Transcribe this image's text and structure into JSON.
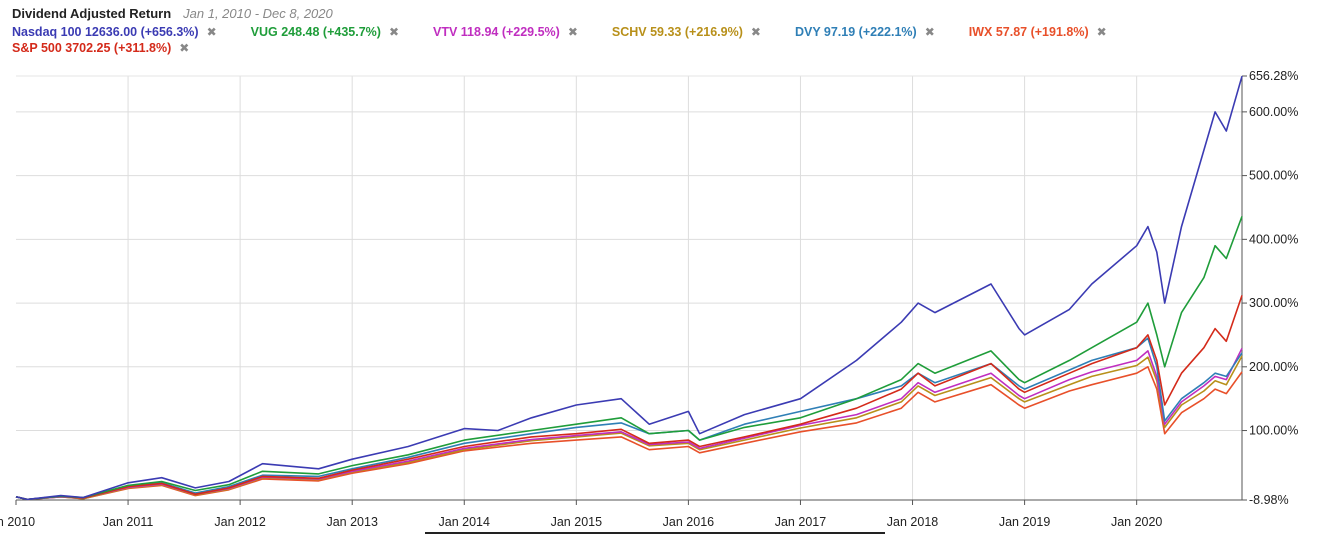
{
  "header": {
    "title": "Dividend Adjusted Return",
    "date_range": "Jan 1, 2010 - Dec 8, 2020"
  },
  "legend": [
    {
      "text": "Nasdaq 100 12636.00 (+656.3%)",
      "color": "#3b3bb3"
    },
    {
      "text": "VUG 248.48 (+435.7%)",
      "color": "#1f9d3a"
    },
    {
      "text": "VTV 118.94 (+229.5%)",
      "color": "#c02ec0"
    },
    {
      "text": "SCHV 59.33 (+216.9%)",
      "color": "#b8901a"
    },
    {
      "text": "DVY 97.19 (+222.1%)",
      "color": "#2f7fb6"
    },
    {
      "text": "IWX 57.87 (+191.8%)",
      "color": "#e8502a"
    },
    {
      "text": "S&P 500 3702.25 (+311.8%)",
      "color": "#d42a1a"
    }
  ],
  "remove_icon": "✖",
  "chart_data": {
    "type": "line",
    "title": "Dividend Adjusted Return",
    "subtitle": "Jan 1, 2010 - Dec 8, 2020",
    "xlabel": "",
    "ylabel": "",
    "x_ticks": [
      "n 2010",
      "Jan 2011",
      "Jan 2012",
      "Jan 2013",
      "Jan 2014",
      "Jan 2015",
      "Jan 2016",
      "Jan 2017",
      "Jan 2018",
      "Jan 2019",
      "Jan 2020"
    ],
    "y_ticks": [
      "-8.98%",
      "100.00%",
      "200.00%",
      "300.00%",
      "400.00%",
      "500.00%",
      "600.00%",
      "656.28%"
    ],
    "ylim": [
      -8.98,
      656.28
    ],
    "xlim": [
      2010.0,
      2020.94
    ],
    "grid": true,
    "legend_position": "top",
    "series": [
      {
        "name": "Nasdaq 100",
        "color": "#3b3bb3",
        "x": [
          2010.0,
          2010.1,
          2010.4,
          2010.6,
          2011.0,
          2011.3,
          2011.6,
          2011.9,
          2012.2,
          2012.7,
          2013.0,
          2013.5,
          2014.0,
          2014.3,
          2014.6,
          2015.0,
          2015.4,
          2015.65,
          2016.0,
          2016.1,
          2016.5,
          2017.0,
          2017.5,
          2017.9,
          2018.05,
          2018.2,
          2018.7,
          2018.95,
          2019.0,
          2019.4,
          2019.6,
          2020.0,
          2020.1,
          2020.18,
          2020.25,
          2020.4,
          2020.6,
          2020.7,
          2020.8,
          2020.94
        ],
        "y": [
          -4,
          -8,
          -2,
          -5,
          18,
          26,
          10,
          20,
          48,
          40,
          55,
          75,
          103,
          100,
          120,
          140,
          150,
          110,
          130,
          95,
          125,
          150,
          210,
          270,
          300,
          285,
          330,
          260,
          250,
          290,
          330,
          390,
          420,
          380,
          300,
          420,
          540,
          600,
          570,
          656
        ]
      },
      {
        "name": "VUG",
        "color": "#1f9d3a",
        "x": [
          2010.0,
          2010.1,
          2010.4,
          2010.6,
          2011.0,
          2011.3,
          2011.6,
          2011.9,
          2012.2,
          2012.7,
          2013.0,
          2013.5,
          2014.0,
          2014.6,
          2015.0,
          2015.4,
          2015.65,
          2016.0,
          2016.1,
          2016.5,
          2017.0,
          2017.5,
          2017.9,
          2018.05,
          2018.2,
          2018.7,
          2018.95,
          2019.0,
          2019.4,
          2019.6,
          2020.0,
          2020.1,
          2020.18,
          2020.25,
          2020.4,
          2020.6,
          2020.7,
          2020.8,
          2020.94
        ],
        "y": [
          -4,
          -8,
          -3,
          -5,
          14,
          20,
          6,
          15,
          36,
          32,
          45,
          62,
          85,
          100,
          110,
          120,
          95,
          100,
          85,
          105,
          120,
          150,
          180,
          205,
          190,
          225,
          180,
          175,
          210,
          230,
          270,
          300,
          250,
          200,
          285,
          340,
          390,
          370,
          436
        ]
      },
      {
        "name": "S&P 500",
        "color": "#d42a1a",
        "x": [
          2010.0,
          2010.1,
          2010.4,
          2010.6,
          2011.0,
          2011.3,
          2011.6,
          2011.9,
          2012.2,
          2012.7,
          2013.0,
          2013.5,
          2014.0,
          2014.6,
          2015.0,
          2015.4,
          2015.65,
          2016.0,
          2016.1,
          2016.5,
          2017.0,
          2017.5,
          2017.9,
          2018.05,
          2018.2,
          2018.7,
          2018.95,
          2019.0,
          2019.4,
          2019.6,
          2020.0,
          2020.1,
          2020.18,
          2020.25,
          2020.4,
          2020.6,
          2020.7,
          2020.8,
          2020.94
        ],
        "y": [
          -4,
          -8,
          -3,
          -6,
          12,
          17,
          0,
          10,
          28,
          25,
          38,
          55,
          75,
          90,
          95,
          102,
          80,
          85,
          75,
          90,
          110,
          135,
          165,
          190,
          170,
          205,
          165,
          160,
          190,
          205,
          230,
          250,
          210,
          140,
          190,
          230,
          260,
          240,
          312
        ]
      },
      {
        "name": "DVY",
        "color": "#2f7fb6",
        "x": [
          2010.0,
          2010.1,
          2010.4,
          2010.6,
          2011.0,
          2011.3,
          2011.6,
          2011.9,
          2012.2,
          2012.7,
          2013.0,
          2013.5,
          2014.0,
          2014.6,
          2015.0,
          2015.4,
          2015.65,
          2016.0,
          2016.1,
          2016.5,
          2017.0,
          2017.5,
          2017.9,
          2018.05,
          2018.2,
          2018.7,
          2018.95,
          2019.0,
          2019.4,
          2019.6,
          2020.0,
          2020.1,
          2020.18,
          2020.25,
          2020.4,
          2020.6,
          2020.7,
          2020.8,
          2020.94
        ],
        "y": [
          -4,
          -8,
          -3,
          -6,
          13,
          18,
          2,
          12,
          30,
          28,
          40,
          58,
          80,
          95,
          105,
          112,
          95,
          100,
          85,
          110,
          130,
          150,
          170,
          190,
          175,
          205,
          170,
          165,
          195,
          210,
          230,
          245,
          200,
          115,
          150,
          175,
          190,
          185,
          222
        ]
      },
      {
        "name": "VTV",
        "color": "#c02ec0",
        "x": [
          2010.0,
          2010.1,
          2010.4,
          2010.6,
          2011.0,
          2011.3,
          2011.6,
          2011.9,
          2012.2,
          2012.7,
          2013.0,
          2013.5,
          2014.0,
          2014.6,
          2015.0,
          2015.4,
          2015.65,
          2016.0,
          2016.1,
          2016.5,
          2017.0,
          2017.5,
          2017.9,
          2018.05,
          2018.2,
          2018.7,
          2018.95,
          2019.0,
          2019.4,
          2019.6,
          2020.0,
          2020.1,
          2020.18,
          2020.25,
          2020.4,
          2020.6,
          2020.7,
          2020.8,
          2020.94
        ],
        "y": [
          -4,
          -8,
          -4,
          -6,
          11,
          16,
          0,
          9,
          27,
          24,
          36,
          52,
          72,
          86,
          92,
          98,
          78,
          82,
          72,
          88,
          108,
          125,
          150,
          175,
          160,
          190,
          155,
          150,
          180,
          192,
          210,
          225,
          185,
          110,
          145,
          170,
          185,
          180,
          229
        ]
      },
      {
        "name": "SCHV",
        "color": "#b8901a",
        "x": [
          2010.0,
          2010.1,
          2010.4,
          2010.6,
          2011.0,
          2011.3,
          2011.6,
          2011.9,
          2012.2,
          2012.7,
          2013.0,
          2013.5,
          2014.0,
          2014.6,
          2015.0,
          2015.4,
          2015.65,
          2016.0,
          2016.1,
          2016.5,
          2017.0,
          2017.5,
          2017.9,
          2018.05,
          2018.2,
          2018.7,
          2018.95,
          2019.0,
          2019.4,
          2019.6,
          2020.0,
          2020.1,
          2020.18,
          2020.25,
          2020.4,
          2020.6,
          2020.7,
          2020.8,
          2020.94
        ],
        "y": [
          -4,
          -8,
          -4,
          -7,
          10,
          15,
          -1,
          8,
          26,
          23,
          35,
          50,
          70,
          84,
          90,
          96,
          76,
          80,
          70,
          85,
          104,
          120,
          145,
          170,
          155,
          183,
          150,
          145,
          172,
          185,
          202,
          215,
          178,
          105,
          140,
          162,
          178,
          172,
          217
        ]
      },
      {
        "name": "IWX",
        "color": "#e8502a",
        "x": [
          2010.0,
          2010.1,
          2010.4,
          2010.6,
          2011.0,
          2011.3,
          2011.6,
          2011.9,
          2012.2,
          2012.7,
          2013.0,
          2013.5,
          2014.0,
          2014.6,
          2015.0,
          2015.4,
          2015.65,
          2016.0,
          2016.1,
          2016.5,
          2017.0,
          2017.5,
          2017.9,
          2018.05,
          2018.2,
          2018.7,
          2018.95,
          2019.0,
          2019.4,
          2019.6,
          2020.0,
          2020.1,
          2020.18,
          2020.25,
          2020.4,
          2020.6,
          2020.7,
          2020.8,
          2020.94
        ],
        "y": [
          -4,
          -8,
          -4,
          -7,
          9,
          14,
          -2,
          7,
          24,
          21,
          33,
          48,
          68,
          80,
          85,
          90,
          70,
          75,
          65,
          80,
          98,
          112,
          135,
          160,
          145,
          172,
          140,
          135,
          162,
          172,
          190,
          200,
          165,
          95,
          128,
          150,
          165,
          158,
          192
        ]
      }
    ]
  }
}
